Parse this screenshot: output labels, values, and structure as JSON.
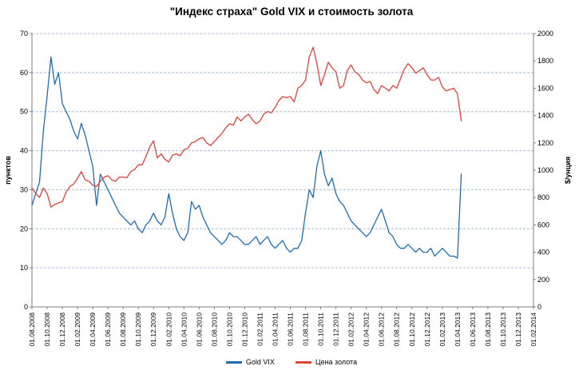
{
  "chart_data": {
    "type": "line",
    "title": "\"Индекс страха\" Gold VIX и стоимость золота",
    "left_axis": {
      "label": "пунктов",
      "min": 0,
      "max": 70,
      "step": 10
    },
    "right_axis": {
      "label": "$/унция",
      "min": 0,
      "max": 2000,
      "step": 200
    },
    "x_axis": {
      "total_months": 66,
      "tick_labels": [
        "01.08.2008",
        "01.10.2008",
        "01.12.2008",
        "01.02.2009",
        "01.04.2009",
        "01.06.2009",
        "01.08.2009",
        "01.10.2009",
        "01.12.2009",
        "01.02.2010",
        "01.04.2010",
        "01.06.2010",
        "01.08.2010",
        "01.10.2010",
        "01.12.2010",
        "01.02.2011",
        "01.04.2011",
        "01.06.2011",
        "01.08.2011",
        "01.10.2011",
        "01.12.2011",
        "01.02.2012",
        "01.04.2012",
        "01.06.2012",
        "01.08.2012",
        "01.10.2012",
        "01.12.2012",
        "01.02.2013",
        "01.04.2013",
        "01.06.2013",
        "01.08.2013",
        "01.10.2013",
        "01.12.2013",
        "01.02.2014"
      ],
      "tick_interval_months": 2
    },
    "sampling": {
      "points_per_month": 2,
      "start_label": "01.08.2008",
      "end_label": "15.04.2013"
    },
    "series": [
      {
        "name": "Gold VIX",
        "axis": "left",
        "color": "#1f6cb4",
        "values": [
          26,
          29,
          32,
          45,
          54,
          64,
          57,
          60,
          52,
          50,
          48,
          45,
          43,
          47,
          44,
          40,
          36,
          26,
          34,
          32,
          30,
          28,
          26,
          24,
          23,
          22,
          21,
          22,
          20,
          19,
          21,
          22,
          24,
          22,
          21,
          23,
          29,
          24,
          20,
          18,
          17,
          19,
          27,
          25,
          26,
          23,
          21,
          19,
          18,
          17,
          16,
          17,
          19,
          18,
          18,
          17,
          16,
          16,
          17,
          18,
          16,
          17,
          18,
          16,
          15,
          16,
          17,
          15,
          14,
          15,
          15,
          17,
          24,
          30,
          28,
          36,
          40,
          34,
          31,
          33,
          29,
          27,
          26,
          24,
          22,
          21,
          20,
          19,
          18,
          19,
          21,
          23,
          25,
          22,
          19,
          18,
          16,
          15,
          15,
          16,
          15,
          14,
          15,
          14,
          14,
          15,
          13,
          14,
          15,
          14,
          13,
          13,
          12.5,
          34
        ]
      },
      {
        "name": "Цена золота",
        "axis": "right",
        "color": "#e2413c",
        "values": [
          870,
          830,
          800,
          870,
          830,
          730,
          750,
          760,
          770,
          840,
          880,
          900,
          940,
          990,
          930,
          920,
          890,
          880,
          920,
          950,
          960,
          930,
          920,
          950,
          950,
          945,
          990,
          1005,
          1040,
          1040,
          1100,
          1170,
          1215,
          1090,
          1120,
          1080,
          1060,
          1110,
          1120,
          1105,
          1150,
          1160,
          1200,
          1210,
          1230,
          1240,
          1200,
          1180,
          1210,
          1240,
          1270,
          1310,
          1340,
          1330,
          1390,
          1360,
          1390,
          1410,
          1370,
          1340,
          1360,
          1410,
          1430,
          1420,
          1460,
          1510,
          1540,
          1530,
          1540,
          1500,
          1600,
          1620,
          1660,
          1830,
          1900,
          1780,
          1620,
          1700,
          1790,
          1750,
          1720,
          1600,
          1620,
          1730,
          1770,
          1720,
          1700,
          1660,
          1640,
          1650,
          1590,
          1560,
          1620,
          1600,
          1580,
          1620,
          1600,
          1670,
          1740,
          1780,
          1750,
          1710,
          1730,
          1750,
          1700,
          1660,
          1660,
          1680,
          1610,
          1580,
          1590,
          1600,
          1560,
          1360
        ]
      }
    ],
    "legend_position": "bottom",
    "grid": "horizontal-dashed"
  },
  "colors": {
    "goldvix_line": "#1f6cb4",
    "gold_price_line": "#e2413c",
    "gridline": "#a3bbd9",
    "axis_line": "#7f7f7f",
    "text": "#000000",
    "background": "#ffffff"
  }
}
